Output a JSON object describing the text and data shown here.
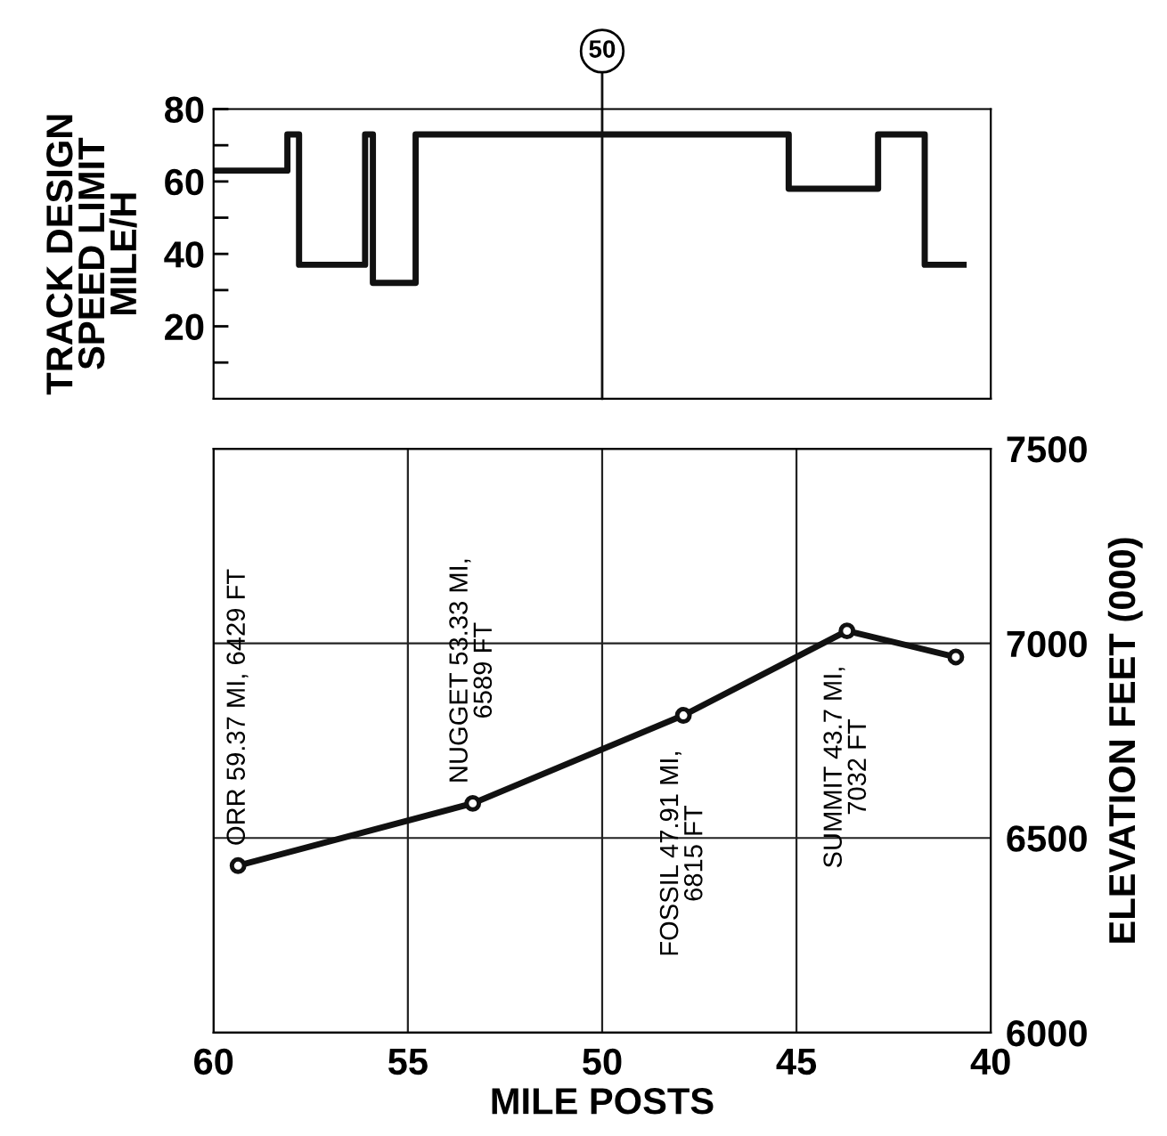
{
  "chart_data": [
    {
      "type": "step",
      "ylabel": "TRACK DESIGN\nSPEED LIMIT\nMILE/H",
      "x": [
        60,
        58.1,
        57.8,
        56.1,
        55.9,
        54.8,
        45.2,
        42.9,
        41.7,
        40.7
      ],
      "series": [
        {
          "color": "#111111",
          "values": [
            63,
            73,
            37,
            73,
            32,
            73,
            58,
            73,
            37,
            37
          ]
        }
      ],
      "xlim": [
        60,
        40
      ],
      "ylim": [
        0,
        80
      ],
      "yticks": [
        {
          "value": 10,
          "label": null
        },
        20,
        {
          "value": 30,
          "label": null
        },
        40,
        {
          "value": 50,
          "label": null
        },
        60,
        {
          "value": 70,
          "label": null
        },
        80
      ],
      "tick_labels": "y",
      "grid": false,
      "legend": false,
      "ref_lines": [
        {
          "axis": "x",
          "value": 50,
          "label": "50",
          "color": "#111111"
        }
      ]
    },
    {
      "type": "line",
      "xlabel": "MILE POSTS",
      "ylabel": "ELEVATION FEET (000)",
      "x": [
        59.37,
        53.33,
        47.91,
        43.7,
        40.9
      ],
      "series": [
        {
          "color": "#111111",
          "values": [
            6429,
            6589,
            6815,
            7032,
            6965
          ]
        }
      ],
      "xlim": [
        60,
        40
      ],
      "ylim": [
        6000,
        7500
      ],
      "xticks": [
        60,
        55,
        50,
        45,
        40
      ],
      "yticks": [
        6000,
        6500,
        7000,
        7500
      ],
      "grid": true,
      "marker": "circle",
      "line_style": "solid",
      "legend": false,
      "annotations": [
        {
          "text": "ORR 59.37 MI, 6429 FT",
          "x": 59.37,
          "y": 6429
        },
        {
          "text": "NUGGET 53.33 MI,\n6589 FT",
          "x": 53.33,
          "y": 6589
        },
        {
          "text": "FOSSIL 47.91 MI,\n6815 FT",
          "x": 47.91,
          "y": 6815
        },
        {
          "text": "SUMMIT 43.7 MI,\n7032 FT",
          "x": 43.7,
          "y": 7032
        }
      ]
    }
  ]
}
